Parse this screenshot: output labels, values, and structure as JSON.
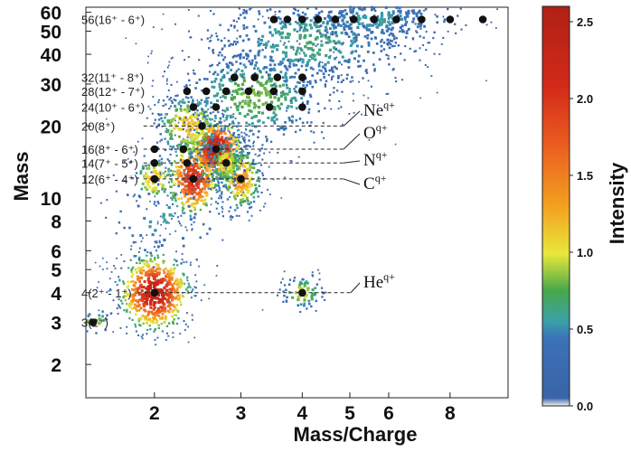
{
  "chart_data": {
    "type": "scatter",
    "title": "",
    "xlabel": "Mass/Charge",
    "ylabel": "Mass",
    "x_scale": "log",
    "y_scale": "log",
    "xlim": [
      1.45,
      10.5
    ],
    "ylim": [
      1.45,
      63
    ],
    "x_ticks": [
      {
        "value": 2,
        "label": "2"
      },
      {
        "value": 3,
        "label": "3"
      },
      {
        "value": 4,
        "label": "4"
      },
      {
        "value": 5,
        "label": "5"
      },
      {
        "value": 6,
        "label": "6"
      },
      {
        "value": 8,
        "label": "8"
      }
    ],
    "y_ticks": [
      {
        "value": 2,
        "label": "2"
      },
      {
        "value": 3,
        "label": "3"
      },
      {
        "value": 4,
        "label": "4"
      },
      {
        "value": 5,
        "label": "5"
      },
      {
        "value": 6,
        "label": "6"
      },
      {
        "value": 8,
        "label": "8"
      },
      {
        "value": 10,
        "label": "10"
      },
      {
        "value": 20,
        "label": "20"
      },
      {
        "value": 30,
        "label": "30"
      },
      {
        "value": 40,
        "label": "40"
      },
      {
        "value": 50,
        "label": "50"
      },
      {
        "value": 60,
        "label": "60"
      }
    ],
    "colorbar": {
      "label": "Intensity",
      "range": [
        0.0,
        2.6
      ],
      "ticks": [
        {
          "value": 0.0,
          "label": "0.0"
        },
        {
          "value": 0.5,
          "label": "0.5"
        },
        {
          "value": 1.0,
          "label": "1.0"
        },
        {
          "value": 1.5,
          "label": "1.5"
        },
        {
          "value": 2.0,
          "label": "2.0"
        },
        {
          "value": 2.5,
          "label": "2.5"
        }
      ]
    },
    "clusters": [
      {
        "x": 1.5,
        "y": 3,
        "sx": 0.03,
        "sy": 0.03,
        "n": 30,
        "peak": 0.9
      },
      {
        "x": 2,
        "y": 4,
        "sx": 0.04,
        "sy": 0.09,
        "n": 600,
        "peak": 2.4
      },
      {
        "x": 4,
        "y": 4,
        "sx": 0.025,
        "sy": 0.04,
        "n": 80,
        "peak": 1.0
      },
      {
        "x": 2,
        "y": 12,
        "sx": 0.025,
        "sy": 0.06,
        "n": 90,
        "peak": 1.2
      },
      {
        "x": 2.4,
        "y": 12,
        "sx": 0.03,
        "sy": 0.09,
        "n": 450,
        "peak": 2.1
      },
      {
        "x": 2.67,
        "y": 16,
        "sx": 0.03,
        "sy": 0.07,
        "n": 500,
        "peak": 2.5
      },
      {
        "x": 3,
        "y": 12,
        "sx": 0.025,
        "sy": 0.08,
        "n": 250,
        "peak": 1.4
      },
      {
        "x": 2.35,
        "y": 20,
        "sx": 0.04,
        "sy": 0.08,
        "n": 250,
        "peak": 1.2
      },
      {
        "x": 2.8,
        "y": 14,
        "sx": 0.02,
        "sy": 0.06,
        "n": 180,
        "peak": 1.1
      },
      {
        "x": 3.2,
        "y": 27,
        "sx": 0.09,
        "sy": 0.12,
        "n": 500,
        "peak": 0.8
      },
      {
        "x": 4.1,
        "y": 45,
        "sx": 0.12,
        "sy": 0.12,
        "n": 550,
        "peak": 0.65
      },
      {
        "x": 5.6,
        "y": 56,
        "sx": 0.1,
        "sy": 0.06,
        "n": 300,
        "peak": 0.55
      },
      {
        "x": 2.1,
        "y": 8,
        "sx": 0.06,
        "sy": 0.12,
        "n": 80,
        "peak": 0.55
      }
    ],
    "markers": [
      {
        "x": 1.5,
        "y": 3
      },
      {
        "x": 2,
        "y": 4
      },
      {
        "x": 4,
        "y": 4
      },
      {
        "x": 2,
        "y": 12
      },
      {
        "x": 2.4,
        "y": 12
      },
      {
        "x": 3,
        "y": 12
      },
      {
        "x": 2,
        "y": 14
      },
      {
        "x": 2.33,
        "y": 14
      },
      {
        "x": 2.8,
        "y": 14
      },
      {
        "x": 2,
        "y": 16
      },
      {
        "x": 2.29,
        "y": 16
      },
      {
        "x": 2.67,
        "y": 16
      },
      {
        "x": 2.5,
        "y": 20
      },
      {
        "x": 2.4,
        "y": 24
      },
      {
        "x": 2.67,
        "y": 24
      },
      {
        "x": 3.43,
        "y": 24
      },
      {
        "x": 4,
        "y": 24
      },
      {
        "x": 2.33,
        "y": 28
      },
      {
        "x": 2.55,
        "y": 28
      },
      {
        "x": 2.8,
        "y": 28
      },
      {
        "x": 3.11,
        "y": 28
      },
      {
        "x": 3.5,
        "y": 28
      },
      {
        "x": 4,
        "y": 28
      },
      {
        "x": 2.91,
        "y": 32
      },
      {
        "x": 3.2,
        "y": 32
      },
      {
        "x": 3.56,
        "y": 32
      },
      {
        "x": 4,
        "y": 32
      },
      {
        "x": 3.5,
        "y": 56
      },
      {
        "x": 3.73,
        "y": 56
      },
      {
        "x": 4,
        "y": 56
      },
      {
        "x": 4.31,
        "y": 56
      },
      {
        "x": 4.67,
        "y": 56
      },
      {
        "x": 5.09,
        "y": 56
      },
      {
        "x": 5.6,
        "y": 56
      },
      {
        "x": 6.22,
        "y": 56
      },
      {
        "x": 7,
        "y": 56
      },
      {
        "x": 8,
        "y": 56
      },
      {
        "x": 9.33,
        "y": 56
      }
    ],
    "mass_labels": [
      {
        "y": 56,
        "text": "56(16⁺ - 6⁺)"
      },
      {
        "y": 32,
        "text": "32(11⁺ - 8⁺)"
      },
      {
        "y": 28,
        "text": "28(12⁺ - 7⁺)"
      },
      {
        "y": 24,
        "text": "24(10⁺ - 6⁺)"
      },
      {
        "y": 20,
        "text": "20(8⁺)"
      },
      {
        "y": 16,
        "text": "16(8⁺ - 6⁺)"
      },
      {
        "y": 14,
        "text": "14(7⁺ - 5⁺)"
      },
      {
        "y": 12,
        "text": "12(6⁺ - 4⁺)"
      },
      {
        "y": 4,
        "text": "4(2⁺ - 1⁺)"
      },
      {
        "y": 3,
        "text": "3(2⁺)"
      }
    ],
    "species": [
      {
        "name": "Ne",
        "sup": "q+",
        "mass": 20
      },
      {
        "name": "O",
        "sup": "q+",
        "mass": 16
      },
      {
        "name": "N",
        "sup": "q+",
        "mass": 14
      },
      {
        "name": "C",
        "sup": "q+",
        "mass": 12
      },
      {
        "name": "He",
        "sup": "q+",
        "mass": 4
      }
    ]
  }
}
